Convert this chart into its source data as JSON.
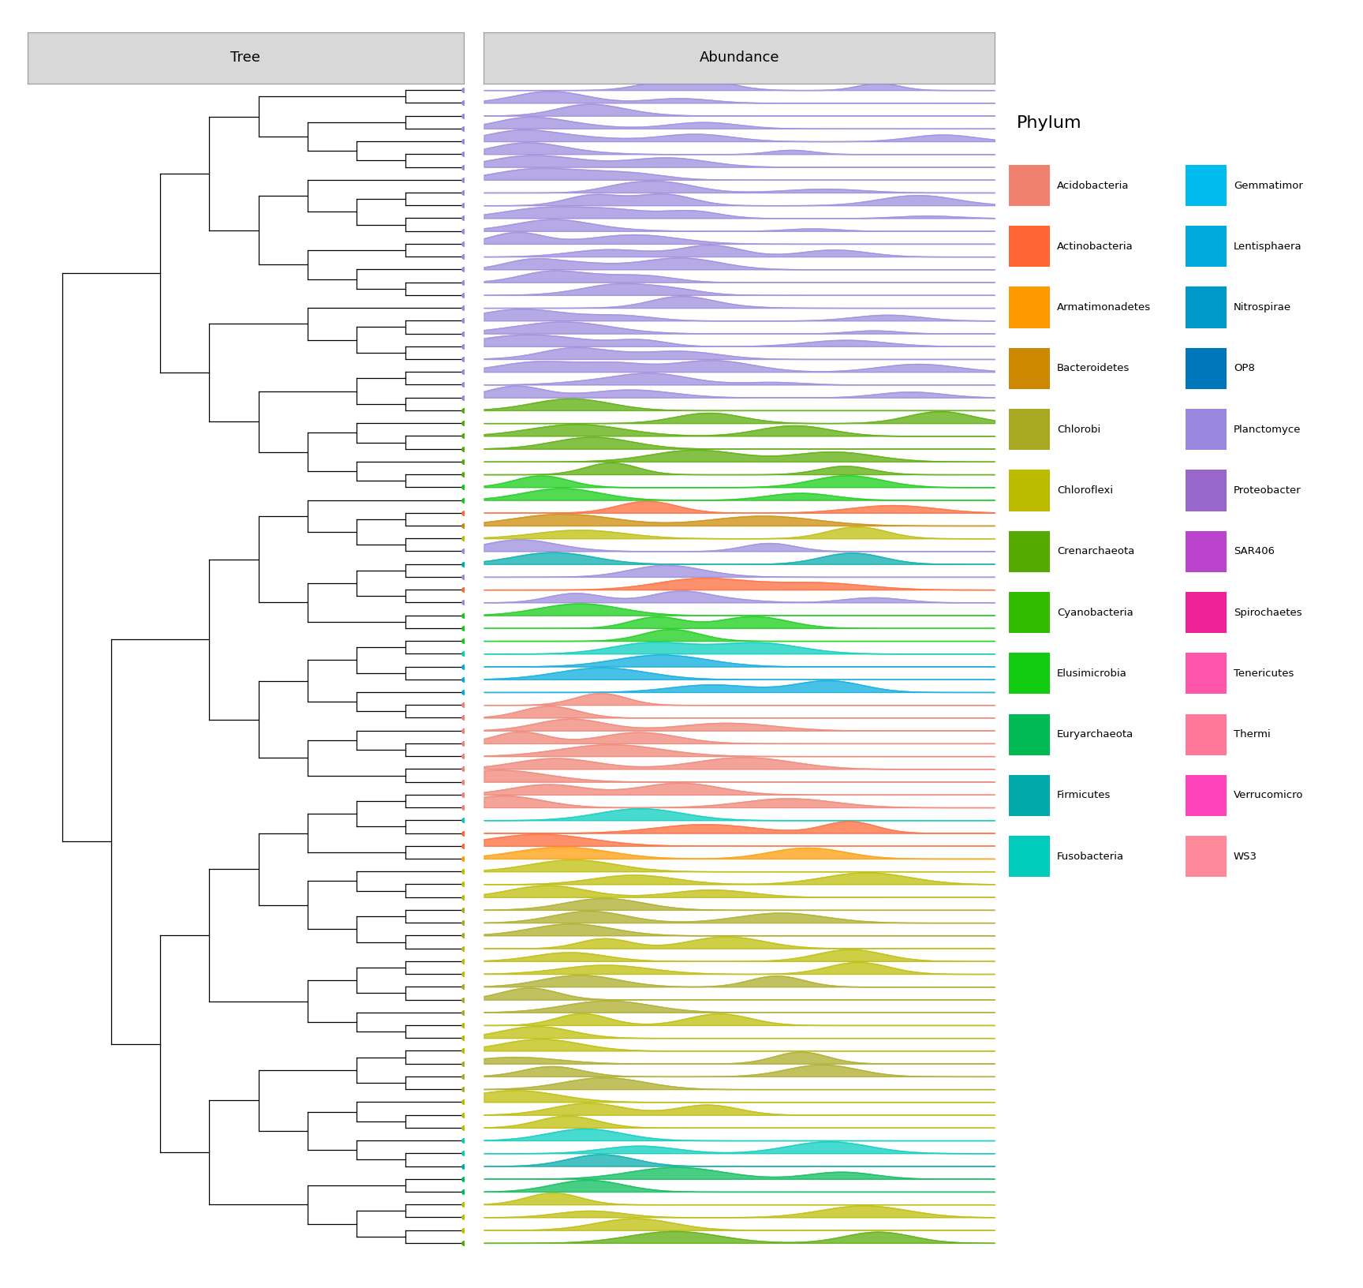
{
  "figsize": [
    17.28,
    16.32
  ],
  "dpi": 100,
  "panel_header_color": "#D8D8D8",
  "panel_border_color": "#999999",
  "tree_lw": 0.9,
  "dot_size": 5,
  "ridge_alpha": 0.72,
  "grid_color": "#C8C8C8",
  "grid_lw": 0.5,
  "legend_title": "Phylum",
  "legend_title_fontsize": 16,
  "legend_entry_fontsize": 9.5,
  "panel_title_fontsize": 13,
  "phylum_colors": {
    "Planctomycetes": "#9988DD",
    "Acidobacteria": "#F08070",
    "Actinobacteria": "#FF6633",
    "Armatimonadetes": "#FF9900",
    "Bacteroidetes": "#CC8800",
    "Chlorobi": "#AAAA22",
    "Chloroflexi": "#BBBB00",
    "Crenarchaeota": "#55AA00",
    "Cyanobacteria": "#33BB00",
    "Elusimicrobia": "#11CC11",
    "Euryarchaeota": "#00BB55",
    "Firmicutes": "#00AAAA",
    "Fusobacteria": "#00CCBB",
    "Gemmatimona": "#00BBEE",
    "Lentisphaera": "#00AADD",
    "Nitrospirae": "#0099CC",
    "OP8": "#0077BB",
    "SAR406": "#BB44CC",
    "Spirochaetes": "#EE2299",
    "Tenericutes": "#FF55AA",
    "Thermi": "#FF7799",
    "Verrucomicrobia": "#FF44BB",
    "WS3": "#FF8899",
    "Proteobacteria": "#9966CC"
  },
  "legend_col1": [
    [
      "Acidobacteria",
      "#F08070"
    ],
    [
      "Actinobacteria",
      "#FF6633"
    ],
    [
      "Armatimonadetes",
      "#FF9900"
    ],
    [
      "Bacteroidetes",
      "#CC8800"
    ],
    [
      "Chlorobi",
      "#AAAA22"
    ],
    [
      "Chloroflexi",
      "#BBBB00"
    ],
    [
      "Crenarchaeota",
      "#55AA00"
    ],
    [
      "Cyanobacteria",
      "#33BB00"
    ],
    [
      "Elusimicrobia",
      "#11CC11"
    ],
    [
      "Euryarchaeota",
      "#00BB55"
    ],
    [
      "Firmicutes",
      "#00AAAA"
    ],
    [
      "Fusobacteria",
      "#00CCBB"
    ]
  ],
  "legend_col2": [
    [
      "Gemmatimor",
      "#00BBEE"
    ],
    [
      "Lentisphaera",
      "#00AADD"
    ],
    [
      "Nitrospirae",
      "#0099CC"
    ],
    [
      "OP8",
      "#0077BB"
    ],
    [
      "Planctomyce",
      "#9988DD"
    ],
    [
      "Proteobacter",
      "#9966CC"
    ],
    [
      "SAR406",
      "#BB44CC"
    ],
    [
      "Spirochaetes",
      "#EE2299"
    ],
    [
      "Tenericutes",
      "#FF55AA"
    ],
    [
      "Thermi",
      "#FF7799"
    ],
    [
      "Verrucomicro",
      "#FF44BB"
    ],
    [
      "WS3",
      "#FF8899"
    ]
  ]
}
